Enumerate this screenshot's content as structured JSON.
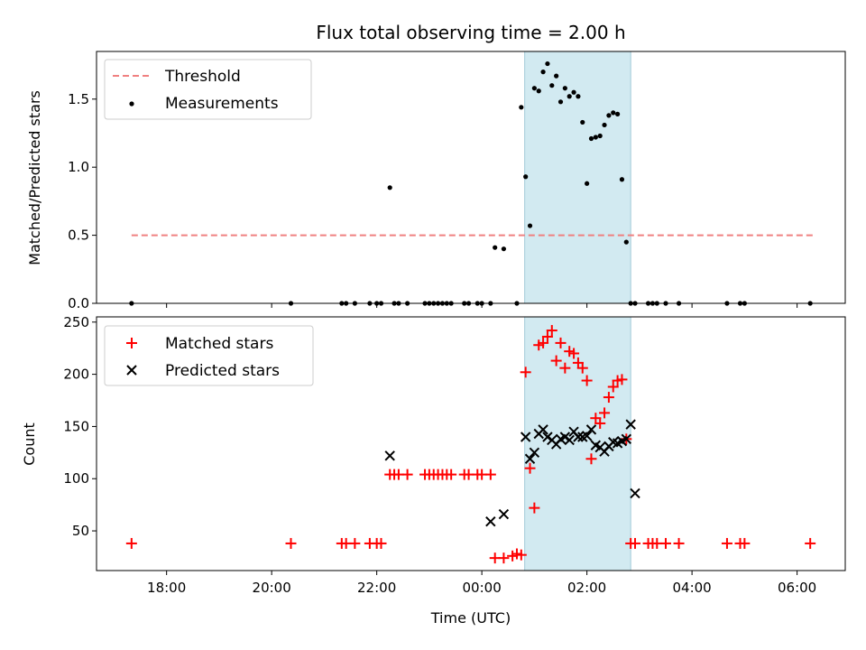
{
  "chart_data": [
    {
      "type": "scatter",
      "title": "Flux total observing time = 2.00 h",
      "ylabel": "Matched/Predicted stars",
      "xlabel": "",
      "ylim": [
        0,
        1.85
      ],
      "yticks": [
        0.0,
        0.5,
        1.0,
        1.5
      ],
      "ytick_labels": [
        "0.0",
        "0.5",
        "1.0",
        "1.5"
      ],
      "legend": "top-left",
      "legend_entries": [
        "Threshold",
        "Measurements"
      ],
      "shaded_span": [
        "2024-01-01T00:49",
        "2024-01-01T02:50"
      ],
      "series": [
        {
          "name": "Threshold",
          "kind": "line",
          "color": "#f08080",
          "x": [
            "2023-12-31T17:20",
            "2024-01-01T06:20"
          ],
          "y": [
            0.5,
            0.5
          ]
        },
        {
          "name": "Measurements",
          "kind": "scatter",
          "color": "#000000",
          "x": [
            "2023-12-31T17:20",
            "2023-12-31T20:22",
            "2023-12-31T21:20",
            "2023-12-31T21:25",
            "2023-12-31T21:35",
            "2023-12-31T21:52",
            "2023-12-31T22:00",
            "2023-12-31T22:05",
            "2023-12-31T22:15",
            "2023-12-31T22:20",
            "2023-12-31T22:25",
            "2023-12-31T22:35",
            "2023-12-31T22:55",
            "2023-12-31T23:00",
            "2023-12-31T23:05",
            "2023-12-31T23:10",
            "2023-12-31T23:15",
            "2023-12-31T23:20",
            "2023-12-31T23:25",
            "2023-12-31T23:40",
            "2023-12-31T23:45",
            "2023-12-31T23:55",
            "2024-01-01T00:00",
            "2024-01-01T00:10",
            "2024-01-01T00:15",
            "2024-01-01T00:25",
            "2024-01-01T00:40",
            "2024-01-01T00:45",
            "2024-01-01T00:50",
            "2024-01-01T00:55",
            "2024-01-01T01:00",
            "2024-01-01T01:05",
            "2024-01-01T01:10",
            "2024-01-01T01:15",
            "2024-01-01T01:20",
            "2024-01-01T01:25",
            "2024-01-01T01:30",
            "2024-01-01T01:35",
            "2024-01-01T01:40",
            "2024-01-01T01:45",
            "2024-01-01T01:50",
            "2024-01-01T01:55",
            "2024-01-01T02:00",
            "2024-01-01T02:05",
            "2024-01-01T02:10",
            "2024-01-01T02:15",
            "2024-01-01T02:20",
            "2024-01-01T02:25",
            "2024-01-01T02:30",
            "2024-01-01T02:35",
            "2024-01-01T02:40",
            "2024-01-01T02:45",
            "2024-01-01T02:50",
            "2024-01-01T02:55",
            "2024-01-01T03:10",
            "2024-01-01T03:15",
            "2024-01-01T03:20",
            "2024-01-01T03:30",
            "2024-01-01T03:45",
            "2024-01-01T04:40",
            "2024-01-01T04:55",
            "2024-01-01T05:00",
            "2024-01-01T06:15"
          ],
          "y": [
            0,
            0,
            0,
            0,
            0,
            0,
            0,
            0,
            0.85,
            0,
            0,
            0,
            0,
            0,
            0,
            0,
            0,
            0,
            0,
            0,
            0,
            0,
            0,
            0,
            0.41,
            0.4,
            0,
            1.44,
            0.93,
            0.57,
            1.58,
            1.56,
            1.7,
            1.76,
            1.6,
            1.67,
            1.48,
            1.58,
            1.52,
            1.55,
            1.52,
            1.33,
            0.88,
            1.21,
            1.22,
            1.23,
            1.31,
            1.38,
            1.4,
            1.39,
            0.91,
            0.45,
            0,
            0,
            0,
            0,
            0,
            0,
            0,
            0,
            0,
            0,
            0
          ]
        }
      ]
    },
    {
      "type": "scatter",
      "title": "",
      "xlabel": "Time (UTC)",
      "ylabel": "Count",
      "ylim": [
        12,
        255
      ],
      "yticks": [
        50,
        100,
        150,
        200,
        250
      ],
      "ytick_labels": [
        "50",
        "100",
        "150",
        "200",
        "250"
      ],
      "xtick_labels": [
        "18:00",
        "20:00",
        "22:00",
        "00:00",
        "02:00",
        "04:00",
        "06:00"
      ],
      "xticks": [
        "2023-12-31T18:00",
        "2023-12-31T20:00",
        "2023-12-31T22:00",
        "2024-01-01T00:00",
        "2024-01-01T02:00",
        "2024-01-01T04:00",
        "2024-01-01T06:00"
      ],
      "xlim": [
        "2023-12-31T16:40",
        "2024-01-01T06:55"
      ],
      "legend": "top-left",
      "legend_entries": [
        "Matched stars",
        "Predicted stars"
      ],
      "shaded_span": [
        "2024-01-01T00:49",
        "2024-01-01T02:50"
      ],
      "series": [
        {
          "name": "Matched stars",
          "marker": "+",
          "color": "#ff0000",
          "x": [
            "2023-12-31T17:20",
            "2023-12-31T20:22",
            "2023-12-31T21:20",
            "2023-12-31T21:25",
            "2023-12-31T21:35",
            "2023-12-31T21:52",
            "2023-12-31T22:00",
            "2023-12-31T22:05",
            "2023-12-31T22:15",
            "2023-12-31T22:20",
            "2023-12-31T22:25",
            "2023-12-31T22:35",
            "2023-12-31T22:55",
            "2023-12-31T23:00",
            "2023-12-31T23:05",
            "2023-12-31T23:10",
            "2023-12-31T23:15",
            "2023-12-31T23:20",
            "2023-12-31T23:25",
            "2023-12-31T23:40",
            "2023-12-31T23:45",
            "2023-12-31T23:55",
            "2024-01-01T00:00",
            "2024-01-01T00:10",
            "2024-01-01T00:15",
            "2024-01-01T00:25",
            "2024-01-01T00:35",
            "2024-01-01T00:40",
            "2024-01-01T00:45",
            "2024-01-01T00:50",
            "2024-01-01T00:55",
            "2024-01-01T01:00",
            "2024-01-01T01:05",
            "2024-01-01T01:10",
            "2024-01-01T01:15",
            "2024-01-01T01:20",
            "2024-01-01T01:25",
            "2024-01-01T01:30",
            "2024-01-01T01:35",
            "2024-01-01T01:40",
            "2024-01-01T01:45",
            "2024-01-01T01:50",
            "2024-01-01T01:55",
            "2024-01-01T02:00",
            "2024-01-01T02:05",
            "2024-01-01T02:10",
            "2024-01-01T02:15",
            "2024-01-01T02:20",
            "2024-01-01T02:25",
            "2024-01-01T02:30",
            "2024-01-01T02:35",
            "2024-01-01T02:40",
            "2024-01-01T02:45",
            "2024-01-01T02:50",
            "2024-01-01T02:55",
            "2024-01-01T03:10",
            "2024-01-01T03:15",
            "2024-01-01T03:20",
            "2024-01-01T03:30",
            "2024-01-01T03:45",
            "2024-01-01T04:40",
            "2024-01-01T04:55",
            "2024-01-01T05:00",
            "2024-01-01T06:15"
          ],
          "y": [
            38,
            38,
            38,
            38,
            38,
            38,
            38,
            38,
            104,
            104,
            104,
            104,
            104,
            104,
            104,
            104,
            104,
            104,
            104,
            104,
            104,
            104,
            104,
            104,
            24,
            24,
            26,
            28,
            27,
            202,
            110,
            72,
            228,
            230,
            236,
            242,
            213,
            230,
            206,
            222,
            220,
            211,
            206,
            194,
            119,
            158,
            153,
            163,
            178,
            188,
            194,
            195,
            138,
            38,
            38,
            38,
            38,
            38,
            38,
            38,
            38,
            38,
            38,
            38
          ]
        },
        {
          "name": "Predicted stars",
          "marker": "x",
          "color": "#000000",
          "x": [
            "2023-12-31T22:15",
            "2024-01-01T00:10",
            "2024-01-01T00:25",
            "2024-01-01T00:50",
            "2024-01-01T00:55",
            "2024-01-01T01:00",
            "2024-01-01T01:05",
            "2024-01-01T01:10",
            "2024-01-01T01:15",
            "2024-01-01T01:20",
            "2024-01-01T01:25",
            "2024-01-01T01:30",
            "2024-01-01T01:35",
            "2024-01-01T01:40",
            "2024-01-01T01:45",
            "2024-01-01T01:50",
            "2024-01-01T01:55",
            "2024-01-01T02:00",
            "2024-01-01T02:05",
            "2024-01-01T02:10",
            "2024-01-01T02:15",
            "2024-01-01T02:20",
            "2024-01-01T02:25",
            "2024-01-01T02:30",
            "2024-01-01T02:35",
            "2024-01-01T02:40",
            "2024-01-01T02:45",
            "2024-01-01T02:50",
            "2024-01-01T02:55"
          ],
          "y": [
            122,
            59,
            66,
            140,
            119,
            125,
            143,
            147,
            140,
            137,
            133,
            138,
            140,
            137,
            145,
            140,
            140,
            141,
            147,
            132,
            130,
            126,
            131,
            135,
            134,
            136,
            138,
            152,
            86
          ]
        }
      ]
    }
  ]
}
